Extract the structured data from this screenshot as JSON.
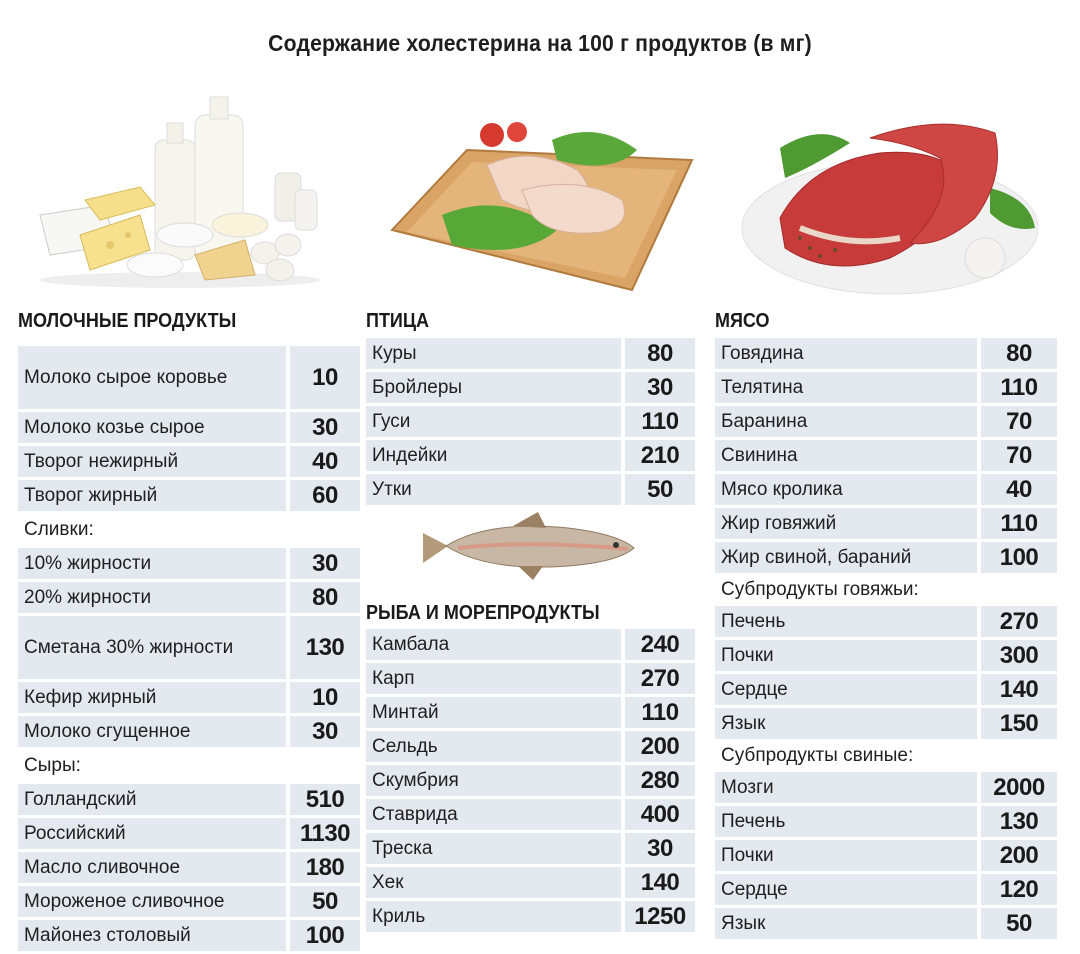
{
  "title": "Содержание холестерина на 100 г продуктов (в мг)",
  "colors": {
    "row_shade": "#e4e8ef",
    "text": "#1a1a1a"
  },
  "illustrations": {
    "dairy": "dairy-products-image",
    "poultry": "chicken-legs-on-board-image",
    "meat": "raw-beef-steak-image",
    "fish": "trout-fish-image"
  },
  "dairy": {
    "heading": "МОЛОЧНЫЕ ПРОДУКТЫ",
    "rows": [
      {
        "name": "Молоко сырое коровье",
        "value": "10"
      },
      {
        "name": "Молоко козье сырое",
        "value": "30"
      },
      {
        "name": "Творог нежирный",
        "value": "40"
      },
      {
        "name": "Творог жирный",
        "value": "60"
      },
      {
        "name": "Сливки:",
        "value": ""
      },
      {
        "name": "10% жирности",
        "value": "30"
      },
      {
        "name": "20% жирности",
        "value": "80"
      },
      {
        "name": "Сметана 30% жирности",
        "value": "130"
      },
      {
        "name": "Кефир жирный",
        "value": "10"
      },
      {
        "name": "Молоко сгущенное",
        "value": "30"
      },
      {
        "name": "Сыры:",
        "value": ""
      },
      {
        "name": "Голландский",
        "value": "510"
      },
      {
        "name": "Российский",
        "value": "1130"
      },
      {
        "name": "Масло сливочное",
        "value": "180"
      },
      {
        "name": "Мороженое сливочное",
        "value": "50"
      },
      {
        "name": "Майонез столовый",
        "value": "100"
      }
    ]
  },
  "poultry": {
    "heading": "ПТИЦА",
    "rows": [
      {
        "name": "Куры",
        "value": "80"
      },
      {
        "name": "Бройлеры",
        "value": "30"
      },
      {
        "name": "Гуси",
        "value": "110"
      },
      {
        "name": "Индейки",
        "value": "210"
      },
      {
        "name": "Утки",
        "value": "50"
      }
    ]
  },
  "fish": {
    "heading": "РЫБА И МОРЕПРОДУКТЫ",
    "rows": [
      {
        "name": "Камбала",
        "value": "240"
      },
      {
        "name": "Карп",
        "value": "270"
      },
      {
        "name": "Минтай",
        "value": "110"
      },
      {
        "name": "Сельдь",
        "value": "200"
      },
      {
        "name": "Скумбрия",
        "value": "280"
      },
      {
        "name": "Ставрида",
        "value": "400"
      },
      {
        "name": "Треска",
        "value": "30"
      },
      {
        "name": "Хек",
        "value": "140"
      },
      {
        "name": "Криль",
        "value": "1250"
      }
    ]
  },
  "meat": {
    "heading": "МЯСО",
    "rows": [
      {
        "name": "Говядина",
        "value": "80"
      },
      {
        "name": "Телятина",
        "value": "110"
      },
      {
        "name": "Баранина",
        "value": "70"
      },
      {
        "name": "Свинина",
        "value": "70"
      },
      {
        "name": "Мясо кролика",
        "value": "40"
      },
      {
        "name": "Жир говяжий",
        "value": "110"
      },
      {
        "name": "Жир свиной, бараний",
        "value": "100"
      },
      {
        "name": "Субпродукты говяжьи:",
        "value": ""
      },
      {
        "name": "Печень",
        "value": "270"
      },
      {
        "name": "Почки",
        "value": "300"
      },
      {
        "name": "Сердце",
        "value": "140"
      },
      {
        "name": "Язык",
        "value": "150"
      },
      {
        "name": "Субпродукты свиные:",
        "value": ""
      },
      {
        "name": "Мозги",
        "value": "2000"
      },
      {
        "name": "Печень",
        "value": "130"
      },
      {
        "name": "Почки",
        "value": "200"
      },
      {
        "name": "Сердце",
        "value": "120"
      },
      {
        "name": "Язык",
        "value": "50"
      }
    ]
  }
}
